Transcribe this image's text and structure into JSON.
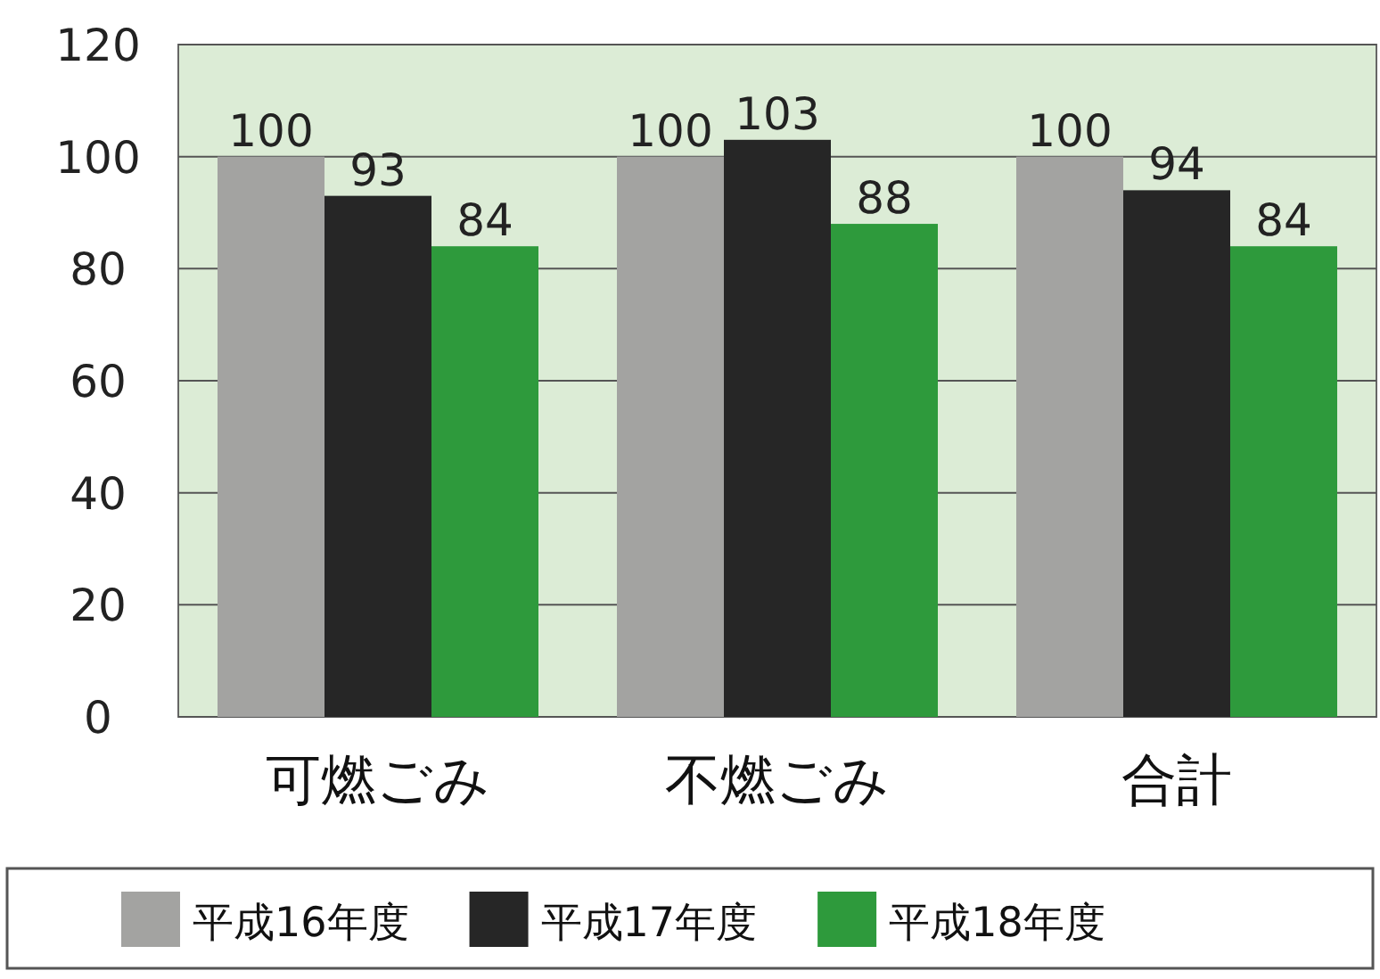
{
  "chart_data": {
    "type": "bar",
    "categories": [
      "可燃ごみ",
      "不燃ごみ",
      "合計"
    ],
    "series": [
      {
        "name": "平成16年度",
        "color": "#a3a3a1",
        "values": [
          100,
          100,
          100
        ]
      },
      {
        "name": "平成17年度",
        "color": "#262626",
        "values": [
          93,
          103,
          94
        ]
      },
      {
        "name": "平成18年度",
        "color": "#2e9a3c",
        "values": [
          84,
          88,
          84
        ]
      }
    ],
    "ylim": [
      0,
      120
    ],
    "yticks": [
      0,
      20,
      40,
      60,
      80,
      100,
      120
    ],
    "grid": "y",
    "legend": "bottom",
    "data_labels": true
  }
}
